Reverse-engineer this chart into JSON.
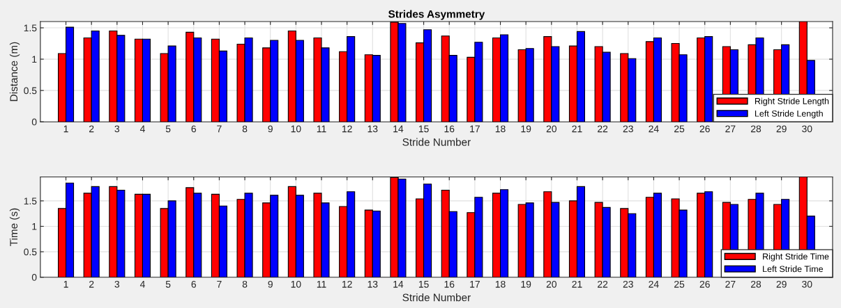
{
  "chart_data": [
    {
      "type": "bar",
      "title": "Strides Asymmetry",
      "xlabel": "Stride Number",
      "ylabel": "Distance (m)",
      "categories": [
        "1",
        "2",
        "3",
        "4",
        "5",
        "6",
        "7",
        "8",
        "9",
        "10",
        "11",
        "12",
        "13",
        "14",
        "15",
        "16",
        "17",
        "18",
        "19",
        "20",
        "21",
        "22",
        "23",
        "24",
        "25",
        "26",
        "27",
        "28",
        "29",
        "30"
      ],
      "series": [
        {
          "name": "Right Stride Length",
          "color": "#ff0000",
          "values": [
            1.09,
            1.34,
            1.45,
            1.32,
            1.09,
            1.43,
            1.32,
            1.24,
            1.18,
            1.45,
            1.34,
            1.12,
            1.07,
            1.59,
            1.26,
            1.37,
            1.03,
            1.34,
            1.15,
            1.36,
            1.21,
            1.2,
            1.09,
            1.28,
            1.25,
            1.34,
            1.2,
            1.23,
            1.15,
            1.6
          ]
        },
        {
          "name": "Left Stride Length",
          "color": "#0000ff",
          "values": [
            1.51,
            1.45,
            1.38,
            1.32,
            1.21,
            1.34,
            1.13,
            1.34,
            1.3,
            1.3,
            1.18,
            1.36,
            1.06,
            1.57,
            1.47,
            1.06,
            1.27,
            1.39,
            1.17,
            1.2,
            1.44,
            1.11,
            1.01,
            1.34,
            1.07,
            1.36,
            1.15,
            1.34,
            1.23,
            0.98
          ]
        }
      ],
      "ylim": [
        0,
        1.6
      ],
      "yticks": [
        0,
        0.5,
        1,
        1.5
      ],
      "grid": true,
      "legend": "bottom right"
    },
    {
      "type": "bar",
      "xlabel": "Stride Number",
      "ylabel": "Time (s)",
      "categories": [
        "1",
        "2",
        "3",
        "4",
        "5",
        "6",
        "7",
        "8",
        "9",
        "10",
        "11",
        "12",
        "13",
        "14",
        "15",
        "16",
        "17",
        "18",
        "19",
        "20",
        "21",
        "22",
        "23",
        "24",
        "25",
        "26",
        "27",
        "28",
        "29",
        "30"
      ],
      "series": [
        {
          "name": "Right Stride Time",
          "color": "#ff0000",
          "values": [
            1.35,
            1.65,
            1.78,
            1.63,
            1.35,
            1.76,
            1.63,
            1.53,
            1.46,
            1.78,
            1.65,
            1.39,
            1.32,
            1.96,
            1.54,
            1.71,
            1.27,
            1.65,
            1.43,
            1.68,
            1.5,
            1.47,
            1.35,
            1.57,
            1.54,
            1.65,
            1.47,
            1.53,
            1.43,
            1.97
          ]
        },
        {
          "name": "Left Stride Time",
          "color": "#0000ff",
          "values": [
            1.85,
            1.78,
            1.71,
            1.63,
            1.5,
            1.65,
            1.4,
            1.65,
            1.61,
            1.61,
            1.46,
            1.68,
            1.3,
            1.93,
            1.83,
            1.29,
            1.57,
            1.72,
            1.46,
            1.47,
            1.78,
            1.37,
            1.25,
            1.65,
            1.32,
            1.68,
            1.43,
            1.65,
            1.53,
            1.2
          ]
        }
      ],
      "ylim": [
        0,
        1.97
      ],
      "yticks": [
        0,
        0.5,
        1,
        1.5
      ],
      "grid": true,
      "legend": "bottom right"
    }
  ]
}
